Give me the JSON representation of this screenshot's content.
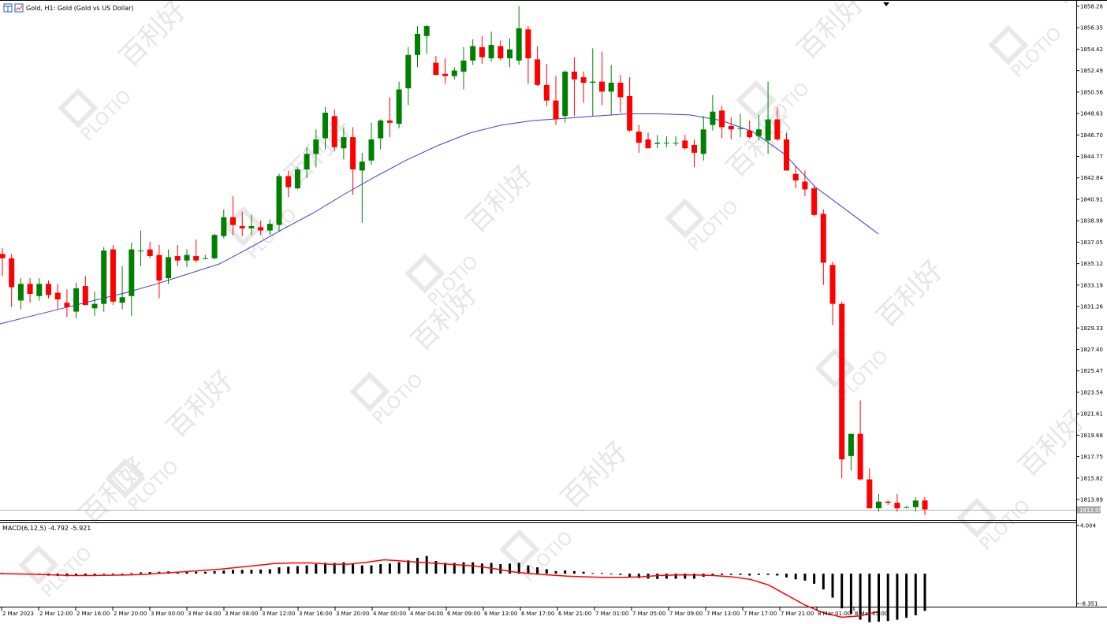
{
  "window": {
    "title": "Gold, H1:  Gold (Gold vs US Dollar)",
    "macd_label": "MACD(6,12,5) -4.792 -5.921",
    "current_price": "1812.95",
    "watermark_text": "PLOTIO",
    "watermark_cn": "百利好"
  },
  "colors": {
    "bull": "#008000",
    "bear": "#ff0000",
    "ma_line": "#3d3dd8",
    "signal_line": "#ff0000",
    "histogram": "#000000",
    "grid_border": "#000000",
    "price_line": "#b0b0b0"
  },
  "chart_data": [
    {
      "type": "candlestick",
      "name": "Gold, H1",
      "y_ticks": [
        "1858.28",
        "1856.35",
        "1854.42",
        "1852.49",
        "1850.56",
        "1848.63",
        "1846.70",
        "1844.77",
        "1842.84",
        "1840.91",
        "1838.98",
        "1837.05",
        "1835.12",
        "1833.19",
        "1831.26",
        "1829.33",
        "1827.40",
        "1825.47",
        "1823.54",
        "1821.61",
        "1819.68",
        "1817.75",
        "1815.82",
        "1813.89"
      ],
      "ylim": [
        1812.0,
        1858.28
      ],
      "x_ticks": [
        "2 Mar 2023",
        "2 Mar 12:00",
        "2 Mar 16:00",
        "2 Mar 20:00",
        "3 Mar 00:00",
        "3 Mar 04:00",
        "3 Mar 08:00",
        "3 Mar 12:00",
        "3 Mar 16:00",
        "3 Mar 20:00",
        "4 Mar 00:00",
        "4 Mar 04:00",
        "6 Mar 09:00",
        "6 Mar 13:00",
        "6 Mar 17:00",
        "6 Mar 21:00",
        "7 Mar 01:00",
        "7 Mar 05:00",
        "7 Mar 09:00",
        "7 Mar 13:00",
        "7 Mar 17:00",
        "7 Mar 21:00",
        "8 Mar 01:00",
        "8 Mar 05:00"
      ],
      "ohlc": [
        [
          1836.0,
          1836.5,
          1834.0,
          1835.6
        ],
        [
          1835.6,
          1836.0,
          1831.2,
          1833.0
        ],
        [
          1831.8,
          1833.8,
          1831.0,
          1833.3
        ],
        [
          1833.3,
          1833.8,
          1831.6,
          1832.4
        ],
        [
          1832.2,
          1833.8,
          1831.8,
          1833.3
        ],
        [
          1833.3,
          1833.6,
          1832.0,
          1832.3
        ],
        [
          1832.5,
          1833.3,
          1831.0,
          1831.9
        ],
        [
          1831.6,
          1832.8,
          1830.3,
          1831.2
        ],
        [
          1830.8,
          1833.4,
          1830.2,
          1832.9
        ],
        [
          1833.1,
          1834.0,
          1831.5,
          1831.4
        ],
        [
          1831.1,
          1832.6,
          1830.4,
          1831.5
        ],
        [
          1831.5,
          1836.6,
          1830.8,
          1836.3
        ],
        [
          1836.4,
          1836.8,
          1831.4,
          1831.7
        ],
        [
          1831.6,
          1834.9,
          1831.0,
          1832.1
        ],
        [
          1832.2,
          1837.0,
          1830.4,
          1836.4
        ],
        [
          1836.3,
          1838.1,
          1834.9,
          1836.3
        ],
        [
          1836.4,
          1837.1,
          1835.6,
          1835.8
        ],
        [
          1835.9,
          1836.8,
          1832.0,
          1833.6
        ],
        [
          1833.8,
          1836.4,
          1833.3,
          1835.7
        ],
        [
          1835.8,
          1836.8,
          1834.9,
          1835.4
        ],
        [
          1835.4,
          1836.4,
          1834.8,
          1835.9
        ],
        [
          1835.8,
          1837.3,
          1835.2,
          1835.4
        ],
        [
          1835.6,
          1835.9,
          1835.6,
          1835.6
        ],
        [
          1835.6,
          1837.8,
          1835.5,
          1837.7
        ],
        [
          1837.6,
          1840.0,
          1837.4,
          1839.3
        ],
        [
          1839.3,
          1841.2,
          1837.7,
          1838.6
        ],
        [
          1838.5,
          1839.8,
          1837.6,
          1838.3
        ],
        [
          1838.3,
          1839.5,
          1837.7,
          1838.5
        ],
        [
          1838.4,
          1839.0,
          1837.7,
          1838.1
        ],
        [
          1838.1,
          1839.1,
          1837.7,
          1838.7
        ],
        [
          1838.6,
          1843.2,
          1838.0,
          1843.0
        ],
        [
          1843.0,
          1843.5,
          1841.1,
          1842.0
        ],
        [
          1841.9,
          1843.8,
          1841.8,
          1843.6
        ],
        [
          1843.6,
          1845.6,
          1842.8,
          1845.0
        ],
        [
          1845.0,
          1847.2,
          1843.8,
          1846.3
        ],
        [
          1846.4,
          1849.2,
          1845.4,
          1848.7
        ],
        [
          1848.4,
          1849.0,
          1845.2,
          1845.6
        ],
        [
          1845.5,
          1847.4,
          1844.5,
          1846.5
        ],
        [
          1846.5,
          1847.4,
          1841.3,
          1843.6
        ],
        [
          1843.5,
          1845.1,
          1838.8,
          1844.3
        ],
        [
          1844.4,
          1847.8,
          1844.0,
          1846.3
        ],
        [
          1846.4,
          1848.1,
          1845.4,
          1848.0
        ],
        [
          1848.0,
          1850.1,
          1846.5,
          1847.8
        ],
        [
          1847.7,
          1851.5,
          1847.3,
          1850.8
        ],
        [
          1850.9,
          1854.6,
          1849.4,
          1853.9
        ],
        [
          1853.9,
          1856.5,
          1852.8,
          1855.8
        ],
        [
          1855.6,
          1856.6,
          1854.0,
          1856.5
        ],
        [
          1853.2,
          1853.8,
          1852.1,
          1852.1
        ],
        [
          1852.2,
          1853.6,
          1851.3,
          1852.0
        ],
        [
          1852.0,
          1852.8,
          1851.7,
          1852.5
        ],
        [
          1852.4,
          1854.6,
          1850.8,
          1853.4
        ],
        [
          1853.4,
          1855.3,
          1853.0,
          1854.7
        ],
        [
          1854.6,
          1855.6,
          1853.1,
          1853.7
        ],
        [
          1853.6,
          1856.0,
          1853.3,
          1854.8
        ],
        [
          1854.7,
          1855.2,
          1853.4,
          1853.6
        ],
        [
          1853.6,
          1855.4,
          1852.8,
          1854.4
        ],
        [
          1853.4,
          1858.3,
          1853.0,
          1856.3
        ],
        [
          1856.2,
          1856.5,
          1851.3,
          1853.6
        ],
        [
          1853.5,
          1854.7,
          1851.1,
          1851.2
        ],
        [
          1851.2,
          1853.1,
          1849.3,
          1849.8
        ],
        [
          1849.8,
          1852.0,
          1847.6,
          1848.1
        ],
        [
          1848.4,
          1852.5,
          1847.8,
          1852.4
        ],
        [
          1852.4,
          1853.7,
          1848.4,
          1851.7
        ],
        [
          1851.9,
          1852.4,
          1849.6,
          1851.4
        ],
        [
          1851.4,
          1854.5,
          1848.4,
          1851.5
        ],
        [
          1851.5,
          1854.2,
          1849.4,
          1850.6
        ],
        [
          1850.6,
          1853.0,
          1848.5,
          1851.4
        ],
        [
          1851.4,
          1852.1,
          1848.7,
          1850.1
        ],
        [
          1850.2,
          1851.9,
          1847.0,
          1847.1
        ],
        [
          1847.0,
          1847.6,
          1845.1,
          1846.0
        ],
        [
          1846.3,
          1846.9,
          1845.5,
          1845.5
        ],
        [
          1845.9,
          1846.7,
          1845.5,
          1846.0
        ],
        [
          1846.0,
          1846.6,
          1845.6,
          1846.0
        ],
        [
          1846.0,
          1846.6,
          1845.7,
          1846.0
        ],
        [
          1846.2,
          1846.7,
          1845.4,
          1845.5
        ],
        [
          1845.8,
          1846.3,
          1843.8,
          1845.1
        ],
        [
          1845.0,
          1848.4,
          1844.4,
          1847.2
        ],
        [
          1847.6,
          1850.3,
          1847.1,
          1848.8
        ],
        [
          1848.9,
          1849.3,
          1846.4,
          1847.4
        ],
        [
          1847.5,
          1848.3,
          1846.3,
          1847.2
        ],
        [
          1847.3,
          1848.6,
          1846.5,
          1847.3
        ],
        [
          1847.1,
          1848.0,
          1846.4,
          1846.5
        ],
        [
          1846.6,
          1848.5,
          1846.2,
          1847.2
        ],
        [
          1846.2,
          1851.5,
          1845.0,
          1848.1
        ],
        [
          1848.1,
          1849.2,
          1846.2,
          1846.3
        ],
        [
          1846.3,
          1846.9,
          1843.5,
          1843.5
        ],
        [
          1843.2,
          1843.9,
          1841.9,
          1842.6
        ],
        [
          1842.5,
          1843.5,
          1841.2,
          1841.8
        ],
        [
          1841.9,
          1842.1,
          1839.4,
          1839.5
        ],
        [
          1839.6,
          1840.0,
          1833.2,
          1835.2
        ],
        [
          1835.0,
          1835.3,
          1829.6,
          1831.5
        ],
        [
          1831.5,
          1831.7,
          1815.8,
          1817.5
        ],
        [
          1817.8,
          1819.8,
          1816.5,
          1819.8
        ],
        [
          1819.8,
          1822.8,
          1815.6,
          1815.7
        ],
        [
          1815.7,
          1816.7,
          1813.2,
          1813.1
        ],
        [
          1813.1,
          1814.4,
          1812.8,
          1813.7
        ],
        [
          1813.7,
          1813.8,
          1813.4,
          1813.6
        ],
        [
          1813.6,
          1814.4,
          1812.8,
          1813.1
        ],
        [
          1813.2,
          1813.3,
          1813.1,
          1813.2
        ],
        [
          1813.2,
          1814.1,
          1812.8,
          1813.8
        ],
        [
          1813.8,
          1814.1,
          1812.5,
          1813.0
        ]
      ],
      "ma": [
        1829.7,
        1830.4,
        1831.1,
        1831.8,
        1832.5,
        1833.3,
        1834.2,
        1835.1,
        1836.6,
        1838.2,
        1839.7,
        1841.4,
        1843.0,
        1844.5,
        1845.8,
        1846.9,
        1847.6,
        1848.0,
        1848.2,
        1848.4,
        1848.6,
        1848.6,
        1848.5,
        1848.0,
        1847.0,
        1845.0,
        1842.0,
        1839.9,
        1837.8
      ],
      "macd_ylim": [
        -8.351,
        4.004
      ],
      "macd_ticks": [
        "4.004",
        "-8.351"
      ],
      "macd_hist": [
        0.1,
        0.05,
        0.0,
        -0.1,
        -0.2,
        -0.3,
        -0.35,
        -0.4,
        -0.3,
        -0.3,
        -0.2,
        0.0,
        -0.1,
        -0.1,
        0.1,
        0.2,
        0.25,
        0.3,
        0.35,
        0.3,
        0.3,
        0.3,
        0.3,
        0.4,
        0.5,
        0.6,
        0.6,
        0.6,
        0.65,
        0.7,
        1.0,
        1.1,
        1.2,
        1.3,
        1.5,
        1.7,
        1.7,
        1.8,
        1.6,
        1.3,
        1.3,
        1.5,
        1.6,
        1.8,
        2.1,
        2.5,
        2.8,
        2.0,
        1.7,
        1.7,
        1.8,
        1.8,
        1.6,
        1.7,
        1.5,
        1.6,
        1.7,
        1.3,
        1.0,
        0.7,
        0.4,
        0.5,
        0.4,
        0.3,
        0.1,
        0.1,
        0.0,
        -0.2,
        -0.5,
        -0.7,
        -0.8,
        -0.85,
        -0.8,
        -0.8,
        -0.8,
        -0.8,
        -0.5,
        -0.2,
        -0.2,
        -0.2,
        -0.2,
        -0.3,
        -0.2,
        -0.2,
        -0.3,
        -0.6,
        -0.9,
        -1.1,
        -1.6,
        -2.5,
        -3.8,
        -5.5,
        -6.4,
        -7.3,
        -7.7,
        -7.6,
        -7.5,
        -7.3,
        -7.0,
        -6.6,
        -5.9
      ],
      "macd_signal": [
        0.0,
        -0.05,
        -0.1,
        -0.2,
        -0.3,
        -0.3,
        -0.25,
        -0.2,
        -0.1,
        0.1,
        0.3,
        0.5,
        0.7,
        1.0,
        1.3,
        1.6,
        1.7,
        1.7,
        1.5,
        1.5,
        1.8,
        2.2,
        2.0,
        1.8,
        1.6,
        1.4,
        1.2,
        0.8,
        0.3,
        0.0,
        -0.2,
        -0.4,
        -0.5,
        -0.6,
        -0.6,
        -0.5,
        -0.3,
        -0.2,
        -0.2,
        -0.3,
        -0.5,
        -0.9,
        -1.8,
        -3.4,
        -5.0,
        -6.2,
        -6.9,
        -6.7,
        -6.0
      ]
    }
  ]
}
